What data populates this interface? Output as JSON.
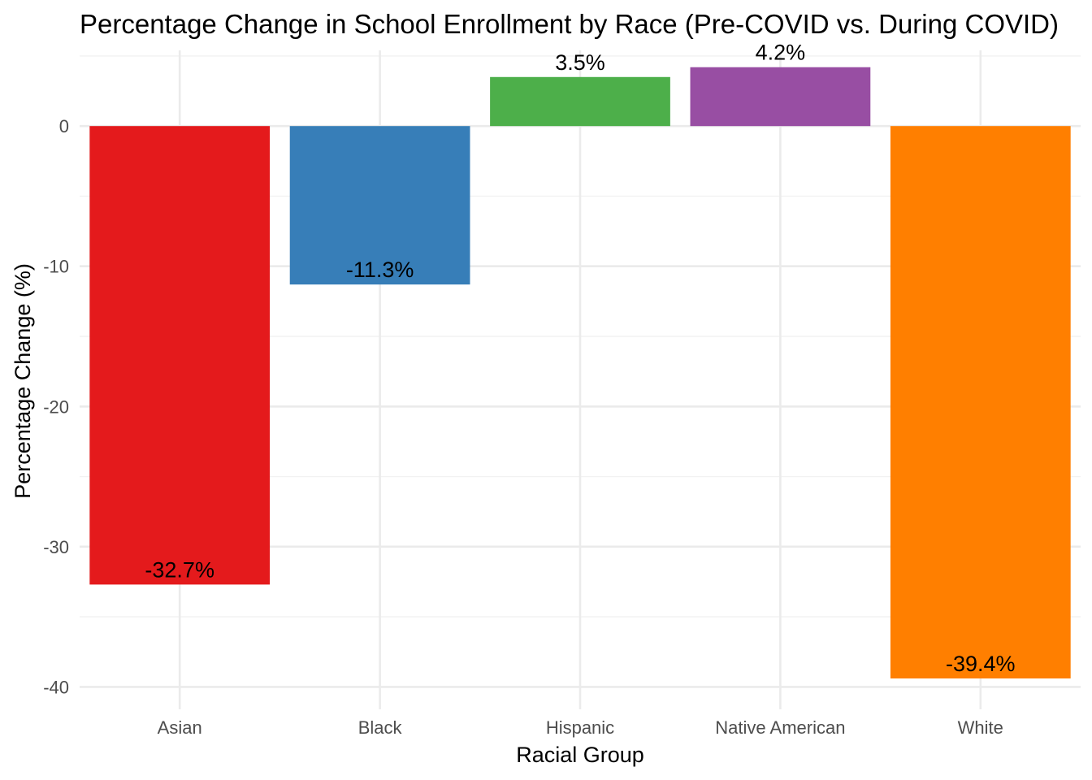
{
  "chart_data": {
    "type": "bar",
    "title": "Percentage Change in School Enrollment by Race (Pre-COVID vs. During COVID)",
    "xlabel": "Racial Group",
    "ylabel": "Percentage Change (%)",
    "categories": [
      "Asian",
      "Black",
      "Hispanic",
      "Native American",
      "White"
    ],
    "values": [
      -32.7,
      -11.3,
      3.5,
      4.2,
      -39.4
    ],
    "data_labels": [
      "-32.7%",
      "-11.3%",
      "3.5%",
      "4.2%",
      "-39.4%"
    ],
    "colors": [
      "#E41A1C",
      "#377EB8",
      "#4DAF4A",
      "#984EA3",
      "#FF7F00"
    ],
    "ylim": [
      -41.6,
      5.4
    ],
    "y_ticks": [
      0,
      -10,
      -20,
      -30,
      -40
    ],
    "y_tick_labels": [
      "0",
      "-10",
      "-20",
      "-30",
      "-40"
    ],
    "grid": true,
    "legend": "none"
  }
}
